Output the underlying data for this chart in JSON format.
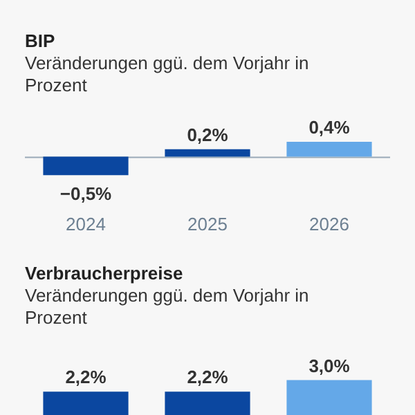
{
  "chart_data": [
    {
      "type": "bar",
      "title": "BIP",
      "subtitle": "Veränderungen ggü. dem Vorjahr in Prozent",
      "categories": [
        "2024",
        "2025",
        "2026"
      ],
      "values": [
        -0.5,
        0.2,
        0.4
      ],
      "colors": [
        "#0b47a0",
        "#0b47a0",
        "#64a8e8"
      ],
      "value_labels": [
        "−0,5%",
        "0,2%",
        "0,4%"
      ],
      "grid": false,
      "legend": false
    },
    {
      "type": "bar",
      "title": "Verbraucherpreise",
      "subtitle": "Veränderungen ggü. dem Vorjahr in Prozent",
      "categories": [
        null,
        null,
        null
      ],
      "values": [
        2.2,
        2.2,
        3.0
      ],
      "colors": [
        "#0b47a0",
        "#0b47a0",
        "#64a8e8"
      ],
      "value_labels": [
        "2,2%",
        "2,2%",
        "3,0%"
      ],
      "grid": false,
      "legend": false
    }
  ]
}
